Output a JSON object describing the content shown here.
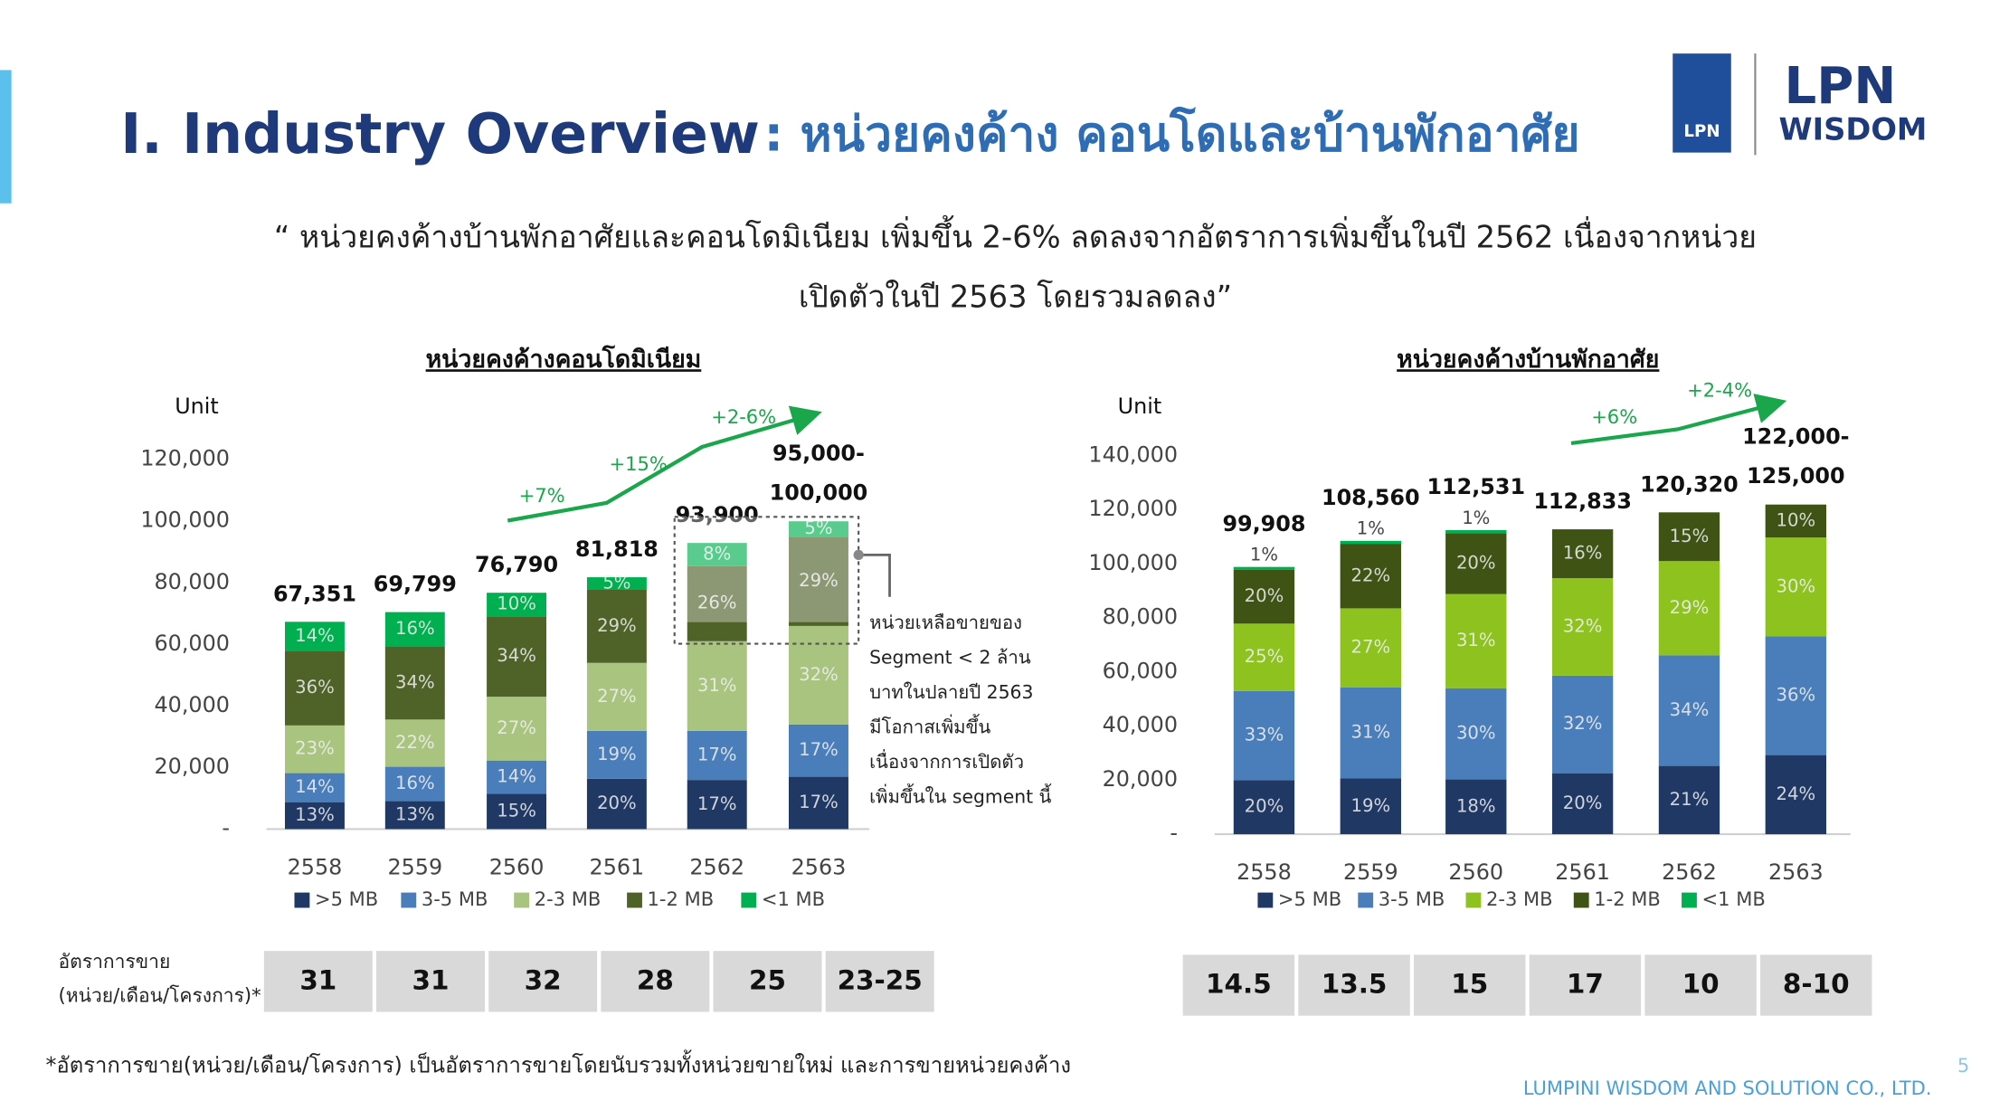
{
  "header": {
    "title": "I. Industry Overview",
    "subtitle": ": หน่วยคงค้าง คอนโดและบ้านพักอาศัย",
    "logo_mark": "LPN",
    "logo_name": "LPN",
    "logo_sub": "WISDOM"
  },
  "quote": [
    "“ หน่วยคงค้างบ้านพักอาศัยและคอนโดมิเนียม เพิ่มขึ้น 2-6% ลดลงจากอัตราการเพิ่มขึ้นในปี 2562 เนื่องจากหน่วย",
    "เปิดตัวในปี 2563 โดยรวมลดลง”"
  ],
  "chart_data": [
    {
      "type": "stacked_bar",
      "title": "หน่วยคงค้างคอนโดมิเนียม",
      "y_label": "Unit",
      "legend": "bottom",
      "grid": false,
      "categories": [
        "2558",
        "2559",
        "2560",
        "2561",
        "2562",
        "2563"
      ],
      "series": [
        {
          "name": ">5 MB",
          "color": "#1f3864",
          "values": [
            13,
            13,
            15,
            20,
            17,
            17
          ],
          "value_labels": [
            "13%",
            "13%",
            "15%",
            "20%",
            "17%",
            "17%"
          ]
        },
        {
          "name": "3-5 MB",
          "color": "#4a7ebb",
          "values": [
            14,
            16,
            14,
            19,
            17,
            17
          ],
          "value_labels": [
            "14%",
            "16%",
            "14%",
            "19%",
            "17%",
            "17%"
          ]
        },
        {
          "name": "2-3 MB",
          "color": "#a9c47f",
          "values": [
            23,
            22,
            27,
            27,
            31,
            32
          ],
          "value_labels": [
            "23%",
            "22%",
            "27%",
            "27%",
            "31%",
            "32%"
          ]
        },
        {
          "name": "1-2 MB",
          "color": "#4f6228",
          "values": [
            36,
            34,
            34,
            29,
            26,
            29
          ],
          "value_labels": [
            "36%",
            "34%",
            "34%",
            "29%",
            "26%",
            "29%"
          ]
        },
        {
          "name": "<1 MB",
          "color": "#00b050",
          "values": [
            14,
            16,
            10,
            5,
            8,
            5
          ],
          "value_labels": [
            "14%",
            "16%",
            "10%",
            "5%",
            "8%",
            "5%"
          ]
        }
      ],
      "totals": {
        "values": [
          67351,
          69799,
          76790,
          81818,
          93900,
          100000
        ],
        "value_labels": [
          "67,351",
          "69,799",
          "76,790",
          "81,818",
          "93,900",
          "95,000-100,000"
        ]
      },
      "ylim": [
        0,
        120000
      ],
      "yticks": [
        {
          "value": 0,
          "label": "-"
        },
        {
          "value": 20000,
          "label": "20,000"
        },
        {
          "value": 40000,
          "label": "40,000"
        },
        {
          "value": 60000,
          "label": "60,000"
        },
        {
          "value": 80000,
          "label": "80,000"
        },
        {
          "value": 100000,
          "label": "100,000"
        },
        {
          "value": 120000,
          "label": "120,000"
        }
      ],
      "growth_labels": [
        "+7%",
        "+15%",
        "+2-6%"
      ],
      "callout": [
        "หน่วยเหลือขายของ",
        "Segment < 2 ล้าน",
        "บาทในปลายปี 2563",
        "มีโอกาสเพิ่มขึ้น",
        "เนื่องจากการเปิดตัว",
        "เพิ่มขึ้นใน segment นี้"
      ]
    },
    {
      "type": "stacked_bar",
      "title": "หน่วยคงค้างบ้านพักอาศัย",
      "y_label": "Unit",
      "legend": "bottom",
      "grid": false,
      "categories": [
        "2558",
        "2559",
        "2560",
        "2561",
        "2562",
        "2563"
      ],
      "series": [
        {
          "name": ">5 MB",
          "color": "#1f3864",
          "values": [
            20,
            19,
            18,
            20,
            21,
            24
          ],
          "value_labels": [
            "20%",
            "19%",
            "18%",
            "20%",
            "21%",
            "24%"
          ]
        },
        {
          "name": "3-5 MB",
          "color": "#4a7ebb",
          "values": [
            33,
            31,
            30,
            32,
            34,
            36
          ],
          "value_labels": [
            "33%",
            "31%",
            "30%",
            "32%",
            "34%",
            "36%"
          ]
        },
        {
          "name": "2-3 MB",
          "color": "#8dc21f",
          "values": [
            25,
            27,
            31,
            32,
            29,
            30
          ],
          "value_labels": [
            "25%",
            "27%",
            "31%",
            "32%",
            "29%",
            "30%"
          ]
        },
        {
          "name": "1-2 MB",
          "color": "#3f5414",
          "values": [
            20,
            22,
            20,
            16,
            15,
            10
          ],
          "value_labels": [
            "20%",
            "22%",
            "20%",
            "16%",
            "15%",
            "10%"
          ]
        },
        {
          "name": "<1 MB",
          "color": "#00b050",
          "values": [
            1,
            1,
            1,
            null,
            null,
            null
          ],
          "value_labels": [
            "1%",
            "1%",
            "1%",
            null,
            null,
            null
          ]
        }
      ],
      "totals": {
        "values": [
          99908,
          108560,
          112531,
          112833,
          120320,
          122000
        ],
        "value_labels": [
          "99,908",
          "108,560",
          "112,531",
          "112,833",
          "120,320",
          "122,000-125,000"
        ]
      },
      "ylim": [
        0,
        140000
      ],
      "yticks": [
        {
          "value": 0,
          "label": "-"
        },
        {
          "value": 20000,
          "label": "20,000"
        },
        {
          "value": 40000,
          "label": "40,000"
        },
        {
          "value": 60000,
          "label": "60,000"
        },
        {
          "value": 80000,
          "label": "80,000"
        },
        {
          "value": 100000,
          "label": "100,000"
        },
        {
          "value": 120000,
          "label": "120,000"
        },
        {
          "value": 140000,
          "label": "140,000"
        }
      ],
      "growth_labels": [
        "+6%",
        "+2-4%"
      ]
    }
  ],
  "sales_rate": {
    "label": [
      "อัตราการขาย",
      "(หน่วย/เดือน/โครงการ)*"
    ],
    "condo": [
      31,
      31,
      32,
      28,
      25,
      "23-25"
    ],
    "house": [
      14.5,
      13.5,
      15,
      17,
      10,
      "8-10"
    ]
  },
  "footnote": "*อัตราการขาย(หน่วย/เดือน/โครงการ) เป็นอัตราการขายโดยนับรวมทั้งหน่วยขายใหม่ และการขายหน่วยคงค้าง",
  "footer": {
    "company": "LUMPINI WISDOM AND SOLUTION CO., LTD.",
    "page": "5"
  }
}
